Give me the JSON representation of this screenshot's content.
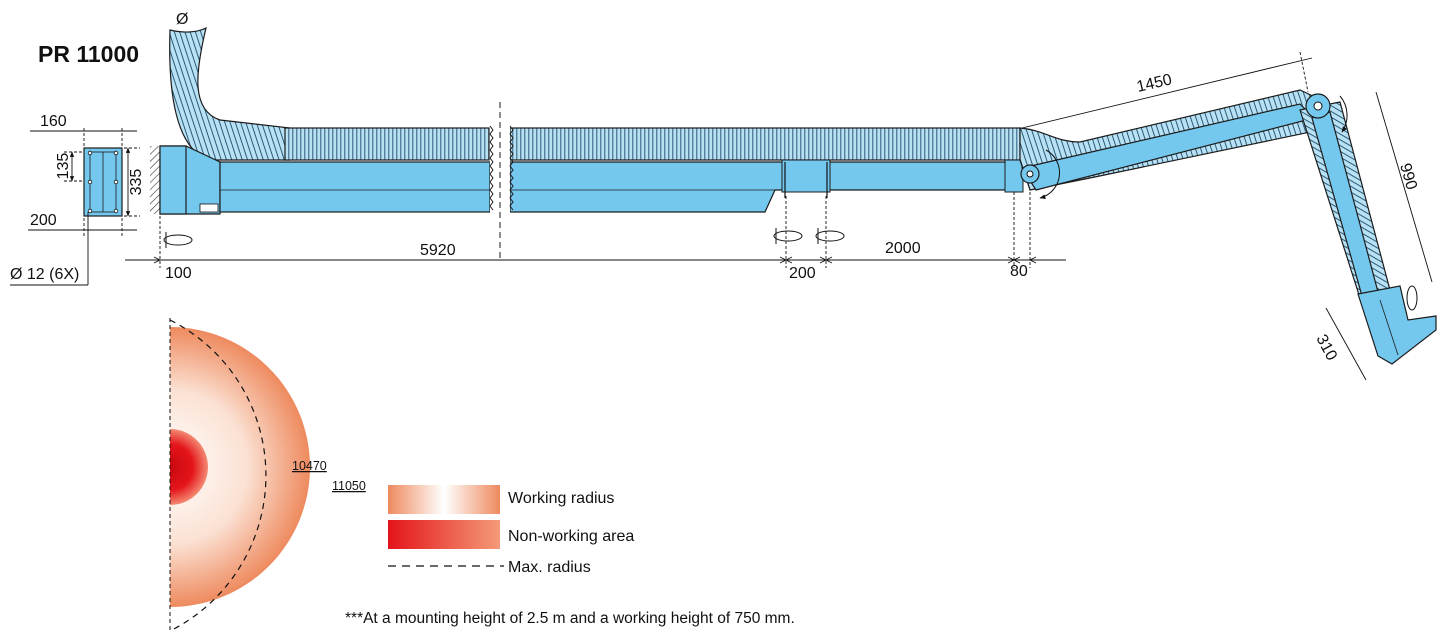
{
  "title": "PR 11000",
  "hose_symbol": "Ø",
  "dimensions": {
    "plate_width": "160",
    "bolt_spacing": "135",
    "plate_height": "335",
    "base_depth": "200",
    "hole_spec": "Ø 12 (6X)",
    "offset_start": "100",
    "arm_length": "5920",
    "bracket_width": "200",
    "segment_length": "2000",
    "joint_offset": "80",
    "upper_arm": "1450",
    "lower_arm": "990",
    "hood": "310",
    "working_radius_value": "10470",
    "max_radius_value": "11050"
  },
  "legend": {
    "working_radius": "Working radius",
    "non_working_area": "Non-working area",
    "max_radius": "Max. radius"
  },
  "colors": {
    "arm_blue": "#74c8ee",
    "outline": "#1c1c1c",
    "working_gradient_outer": "#ee8a5e",
    "working_gradient_inner": "#ffffff",
    "non_working_red": "#e4141b"
  },
  "footnote": "***At a mounting height of 2.5 m and a working height of 750 mm."
}
